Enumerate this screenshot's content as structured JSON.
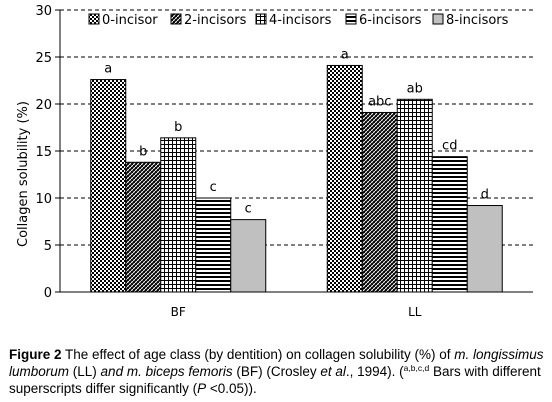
{
  "chart_data": {
    "type": "bar",
    "title": "",
    "xlabel": "",
    "ylabel": "Collagen solubility (%)",
    "ylim": [
      0,
      30
    ],
    "yticks": [
      0,
      5,
      10,
      15,
      20,
      25,
      30
    ],
    "grid": "horizontal dashed",
    "legend_position": "top",
    "categories": [
      "BF",
      "LL"
    ],
    "series": [
      {
        "name": "0-incisor",
        "pattern": "dots",
        "values": [
          22.6,
          24.1
        ],
        "letters": [
          "a",
          "a"
        ]
      },
      {
        "name": "2-incisors",
        "pattern": "crosshatch",
        "values": [
          13.8,
          19.1
        ],
        "letters": [
          "b",
          "abc"
        ]
      },
      {
        "name": "4-incisors",
        "pattern": "grid",
        "values": [
          16.4,
          20.5
        ],
        "letters": [
          "b",
          "ab"
        ]
      },
      {
        "name": "6-incisors",
        "pattern": "horizontal-lines",
        "values": [
          10.0,
          14.4
        ],
        "letters": [
          "c",
          "cd"
        ]
      },
      {
        "name": "8-incisors",
        "pattern": "solid-gray",
        "values": [
          7.7,
          9.2
        ],
        "letters": [
          "c",
          "d"
        ]
      }
    ]
  },
  "caption": {
    "fig_label": "Figure 2",
    "text1": " The effect of age class (by dentition) on collagen solubility (%) of ",
    "ll_name": "m. longissimus lumborum",
    "text2": " (LL) ",
    "and_m": "and m. biceps femoris",
    "text3": " (BF) (Crosley ",
    "et_al": "et al",
    "text4": "., 1994). (",
    "superscripts": "a,b,c,d",
    "text5": " Bars with different superscripts differ significantly (",
    "p": "P",
    "text6": " <0.05))."
  }
}
